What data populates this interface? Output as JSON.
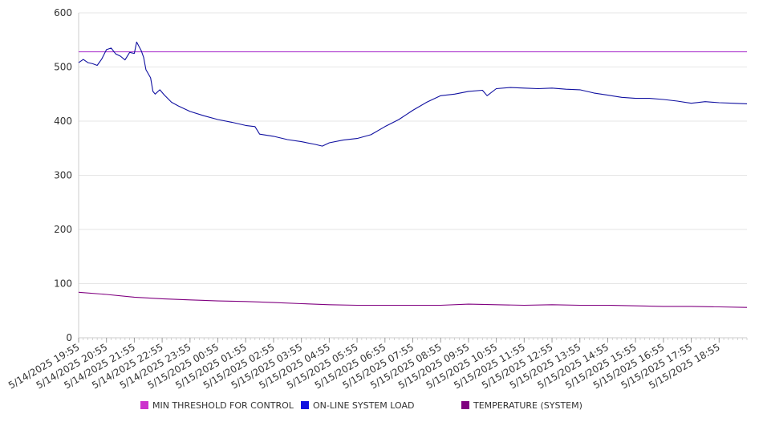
{
  "chart_data": {
    "type": "line",
    "title": "",
    "xlabel": "",
    "ylabel": "",
    "ylim": [
      0,
      600
    ],
    "y_ticks": [
      "0",
      "100",
      "200",
      "300",
      "400",
      "500",
      "600"
    ],
    "x_tick_labels": [
      "5/14/2025 19:55",
      "5/14/2025 20:55",
      "5/14/2025 21:55",
      "5/14/2025 22:55",
      "5/14/2025 23:55",
      "5/15/2025 00:55",
      "5/15/2025 01:55",
      "5/15/2025 02:55",
      "5/15/2025 03:55",
      "5/15/2025 04:55",
      "5/15/2025 05:55",
      "5/15/2025 06:55",
      "5/15/2025 07:55",
      "5/15/2025 08:55",
      "5/15/2025 09:55",
      "5/15/2025 10:55",
      "5/15/2025 11:55",
      "5/15/2025 12:55",
      "5/15/2025 13:55",
      "5/15/2025 14:55",
      "5/15/2025 15:55",
      "5/15/2025 16:55",
      "5/15/2025 17:55",
      "5/15/2025 18:55"
    ],
    "x_range": [
      "5/14/2025 19:55",
      "5/15/2025 19:55"
    ],
    "grid": "horizontal",
    "legend_position": "bottom",
    "series": [
      {
        "name": "MIN THRESHOLD FOR CONTROL",
        "color": "#cc33cc",
        "line_color": "#b040d0",
        "points": [
          [
            "5/14/2025 19:55",
            528
          ],
          [
            "5/15/2025 19:55",
            528
          ]
        ]
      },
      {
        "name": "ON-LINE SYSTEM LOAD",
        "color": "#1010e0",
        "line_color": "#1010a0",
        "points": [
          [
            "5/14/2025 19:55",
            508
          ],
          [
            "5/14/2025 20:05",
            514
          ],
          [
            "5/14/2025 20:15",
            508
          ],
          [
            "5/14/2025 20:25",
            506
          ],
          [
            "5/14/2025 20:35",
            503
          ],
          [
            "5/14/2025 20:45",
            515
          ],
          [
            "5/14/2025 20:55",
            532
          ],
          [
            "5/14/2025 21:05",
            535
          ],
          [
            "5/14/2025 21:15",
            524
          ],
          [
            "5/14/2025 21:25",
            520
          ],
          [
            "5/14/2025 21:35",
            513
          ],
          [
            "5/14/2025 21:45",
            527
          ],
          [
            "5/14/2025 21:55",
            525
          ],
          [
            "5/14/2025 22:00",
            546
          ],
          [
            "5/14/2025 22:10",
            530
          ],
          [
            "5/14/2025 22:15",
            518
          ],
          [
            "5/14/2025 22:20",
            495
          ],
          [
            "5/14/2025 22:30",
            480
          ],
          [
            "5/14/2025 22:35",
            455
          ],
          [
            "5/14/2025 22:40",
            450
          ],
          [
            "5/14/2025 22:50",
            458
          ],
          [
            "5/14/2025 23:00",
            448
          ],
          [
            "5/14/2025 23:15",
            435
          ],
          [
            "5/14/2025 23:30",
            428
          ],
          [
            "5/14/2025 23:55",
            418
          ],
          [
            "5/15/2025 00:25",
            410
          ],
          [
            "5/15/2025 00:55",
            403
          ],
          [
            "5/15/2025 01:25",
            398
          ],
          [
            "5/15/2025 01:55",
            392
          ],
          [
            "5/15/2025 02:15",
            390
          ],
          [
            "5/15/2025 02:25",
            376
          ],
          [
            "5/15/2025 02:55",
            372
          ],
          [
            "5/15/2025 03:25",
            366
          ],
          [
            "5/15/2025 03:55",
            362
          ],
          [
            "5/15/2025 04:25",
            357
          ],
          [
            "5/15/2025 04:40",
            354
          ],
          [
            "5/15/2025 04:55",
            360
          ],
          [
            "5/15/2025 05:25",
            365
          ],
          [
            "5/15/2025 05:55",
            368
          ],
          [
            "5/15/2025 06:25",
            375
          ],
          [
            "5/15/2025 06:55",
            390
          ],
          [
            "5/15/2025 07:25",
            403
          ],
          [
            "5/15/2025 07:55",
            420
          ],
          [
            "5/15/2025 08:25",
            435
          ],
          [
            "5/15/2025 08:55",
            447
          ],
          [
            "5/15/2025 09:25",
            450
          ],
          [
            "5/15/2025 09:55",
            455
          ],
          [
            "5/15/2025 10:25",
            457
          ],
          [
            "5/15/2025 10:35",
            447
          ],
          [
            "5/15/2025 10:55",
            460
          ],
          [
            "5/15/2025 11:25",
            462
          ],
          [
            "5/15/2025 11:55",
            461
          ],
          [
            "5/15/2025 12:25",
            460
          ],
          [
            "5/15/2025 12:55",
            461
          ],
          [
            "5/15/2025 13:25",
            459
          ],
          [
            "5/15/2025 13:55",
            458
          ],
          [
            "5/15/2025 14:25",
            452
          ],
          [
            "5/15/2025 14:55",
            448
          ],
          [
            "5/15/2025 15:25",
            444
          ],
          [
            "5/15/2025 15:55",
            442
          ],
          [
            "5/15/2025 16:25",
            442
          ],
          [
            "5/15/2025 16:55",
            440
          ],
          [
            "5/15/2025 17:25",
            437
          ],
          [
            "5/15/2025 17:55",
            433
          ],
          [
            "5/15/2025 18:25",
            436
          ],
          [
            "5/15/2025 18:55",
            434
          ],
          [
            "5/15/2025 19:25",
            433
          ],
          [
            "5/15/2025 19:55",
            432
          ]
        ]
      },
      {
        "name": "TEMPERATURE (SYSTEM)",
        "color": "#800080",
        "line_color": "#800080",
        "points": [
          [
            "5/14/2025 19:55",
            84
          ],
          [
            "5/14/2025 20:55",
            80
          ],
          [
            "5/14/2025 21:55",
            75
          ],
          [
            "5/14/2025 22:55",
            72
          ],
          [
            "5/14/2025 23:55",
            70
          ],
          [
            "5/15/2025 00:55",
            68
          ],
          [
            "5/15/2025 01:55",
            67
          ],
          [
            "5/15/2025 02:55",
            65
          ],
          [
            "5/15/2025 03:55",
            63
          ],
          [
            "5/15/2025 04:55",
            61
          ],
          [
            "5/15/2025 05:55",
            60
          ],
          [
            "5/15/2025 06:55",
            60
          ],
          [
            "5/15/2025 07:55",
            60
          ],
          [
            "5/15/2025 08:55",
            60
          ],
          [
            "5/15/2025 09:55",
            62
          ],
          [
            "5/15/2025 10:55",
            61
          ],
          [
            "5/15/2025 11:55",
            60
          ],
          [
            "5/15/2025 12:55",
            61
          ],
          [
            "5/15/2025 13:55",
            60
          ],
          [
            "5/15/2025 14:55",
            60
          ],
          [
            "5/15/2025 15:55",
            59
          ],
          [
            "5/15/2025 16:55",
            58
          ],
          [
            "5/15/2025 17:55",
            58
          ],
          [
            "5/15/2025 18:55",
            57
          ],
          [
            "5/15/2025 19:55",
            56
          ]
        ]
      }
    ]
  }
}
